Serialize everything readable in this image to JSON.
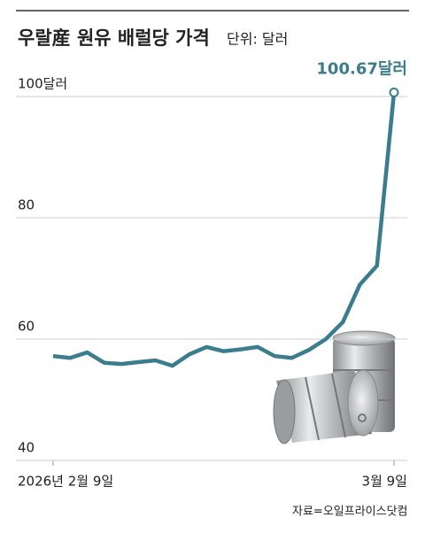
{
  "chart_data": {
    "type": "line",
    "title": "우랄産 원유 배럴당 가격",
    "subtitle": "단위: 달러",
    "source": "자료=오일프라이스닷컴",
    "categories": [
      "2026년 2월 9일",
      null,
      null,
      null,
      null,
      null,
      null,
      null,
      null,
      null,
      null,
      null,
      null,
      null,
      null,
      null,
      null,
      null,
      null,
      null,
      "3월 9일"
    ],
    "values": [
      57.2,
      56.9,
      57.8,
      56.1,
      55.9,
      56.2,
      56.5,
      55.6,
      57.5,
      58.7,
      58.0,
      58.3,
      58.7,
      57.2,
      56.9,
      58.2,
      60.0,
      62.8,
      69.0,
      72.1,
      100.67
    ],
    "value_labels": [
      null,
      null,
      null,
      null,
      null,
      null,
      null,
      null,
      null,
      null,
      null,
      null,
      null,
      null,
      null,
      null,
      null,
      null,
      null,
      null,
      "100.67달러"
    ],
    "color": "#3b7d8f",
    "ylim": [
      40,
      100
    ],
    "yticks": [
      40,
      60,
      80,
      {
        "value": 100,
        "label": "100달러"
      }
    ],
    "grid": true
  }
}
